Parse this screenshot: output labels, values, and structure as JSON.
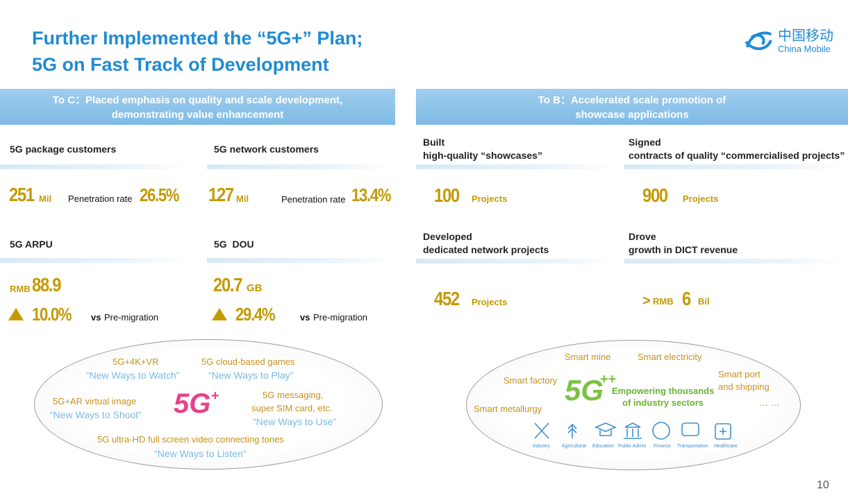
{
  "title": {
    "lines": [
      "Further Implemented the “5G+” Plan;",
      "5G on Fast Track of Development"
    ]
  },
  "logo": {
    "cn": "中国移动",
    "en": "China Mobile"
  },
  "page_number": "10",
  "left": {
    "header": [
      "To C：Placed emphasis on quality and scale development,",
      "demonstrating value enhancement"
    ],
    "cards": [
      {
        "label": "5G package customers",
        "value": "251",
        "unit": "Mil",
        "rate_label": "Penetration rate",
        "rate": "26.5%"
      },
      {
        "label": "5G network customers",
        "value": "127",
        "unit": "Mil",
        "rate_label": "Penetration rate",
        "rate": "13.4%"
      },
      {
        "label": "5G ARPU",
        "prefix": "RMB",
        "value": "88.9",
        "change": "10.0%",
        "vs": "vs",
        "compare": "Pre-migration"
      },
      {
        "label": "5G  DOU",
        "value": "20.7",
        "unit": "GB",
        "change": "29.4%",
        "vs": "vs",
        "compare": "Pre-migration"
      }
    ],
    "ellipse": {
      "logo": "5G",
      "plus": "+",
      "items": [
        {
          "lines": [
            "5G+4K+VR"
          ],
          "sub": "“New Ways to Watch”"
        },
        {
          "lines": [
            "5G cloud-based games"
          ],
          "sub": "“New Ways to Play”"
        },
        {
          "lines": [
            "5G+AR virtual image"
          ],
          "sub": "“New Ways to Shoot”"
        },
        {
          "lines": [
            "5G messaging,",
            "super SIM card, etc."
          ],
          "sub": "“New Ways to Use”"
        },
        {
          "lines": [
            "5G ultra-HD full screen video connecting tones"
          ],
          "sub": "“New Ways to Listen”"
        }
      ]
    }
  },
  "right": {
    "header": [
      "To B：Accelerated scale promotion of",
      "showcase applications"
    ],
    "cards": [
      {
        "label": [
          "Built",
          "high-quality “showcases”"
        ],
        "value": "100",
        "unit": "Projects"
      },
      {
        "label": [
          "Signed",
          "contracts of quality “commercialised projects”"
        ],
        "value": "900",
        "unit": "Projects"
      },
      {
        "label": [
          "Developed",
          "dedicated network projects"
        ],
        "value": "452",
        "unit": "Projects"
      },
      {
        "label": [
          "Drove",
          "growth in DICT revenue"
        ],
        "sign": ">",
        "prefix": "RMB",
        "value": "6",
        "unit": "Bil"
      }
    ],
    "ellipse": {
      "logo": "5G",
      "plus": "++",
      "center": [
        "Empowering thousands",
        "of industry sectors"
      ],
      "sectors": [
        [
          "Smart mine"
        ],
        [
          "Smart electricity"
        ],
        [
          "Smart factory"
        ],
        [
          "Smart port",
          "and shipping"
        ],
        [
          "Smart metallurgy"
        ],
        [
          "… …"
        ]
      ],
      "icons": [
        "Industry",
        "Agricultural",
        "Education",
        "Public Admin",
        "Finance",
        "Transportation",
        "Healthcare"
      ]
    }
  }
}
